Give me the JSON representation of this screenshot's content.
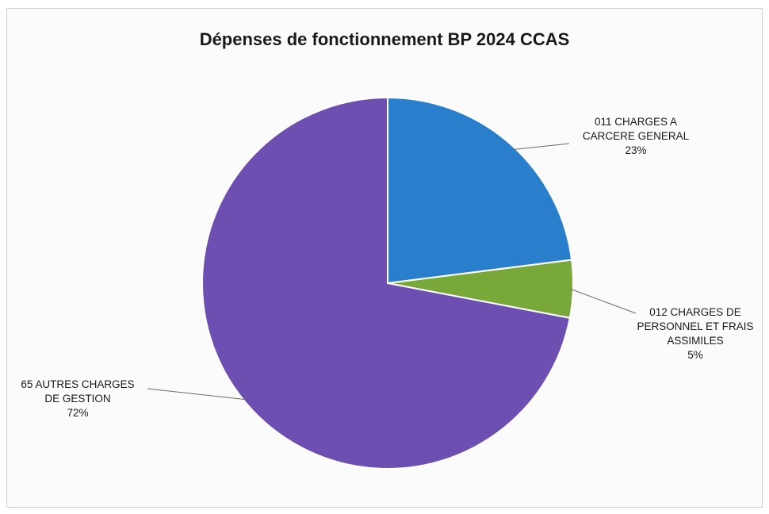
{
  "chart_data": {
    "type": "pie",
    "title": "Dépenses de fonctionnement BP 2024 CCAS",
    "slices": [
      {
        "label_lines": [
          "011 CHARGES A",
          "CARCERE GENERAL"
        ],
        "percent_label": "23%",
        "value": 23,
        "color": "#2a7fcc"
      },
      {
        "label_lines": [
          "012 CHARGES DE",
          "PERSONNEL ET FRAIS",
          "ASSIMILES"
        ],
        "percent_label": "5%",
        "value": 5,
        "color": "#79a83a"
      },
      {
        "label_lines": [
          "65 AUTRES CHARGES",
          "DE GESTION"
        ],
        "percent_label": "72%",
        "value": 72,
        "color": "#6c4fb0"
      }
    ]
  }
}
